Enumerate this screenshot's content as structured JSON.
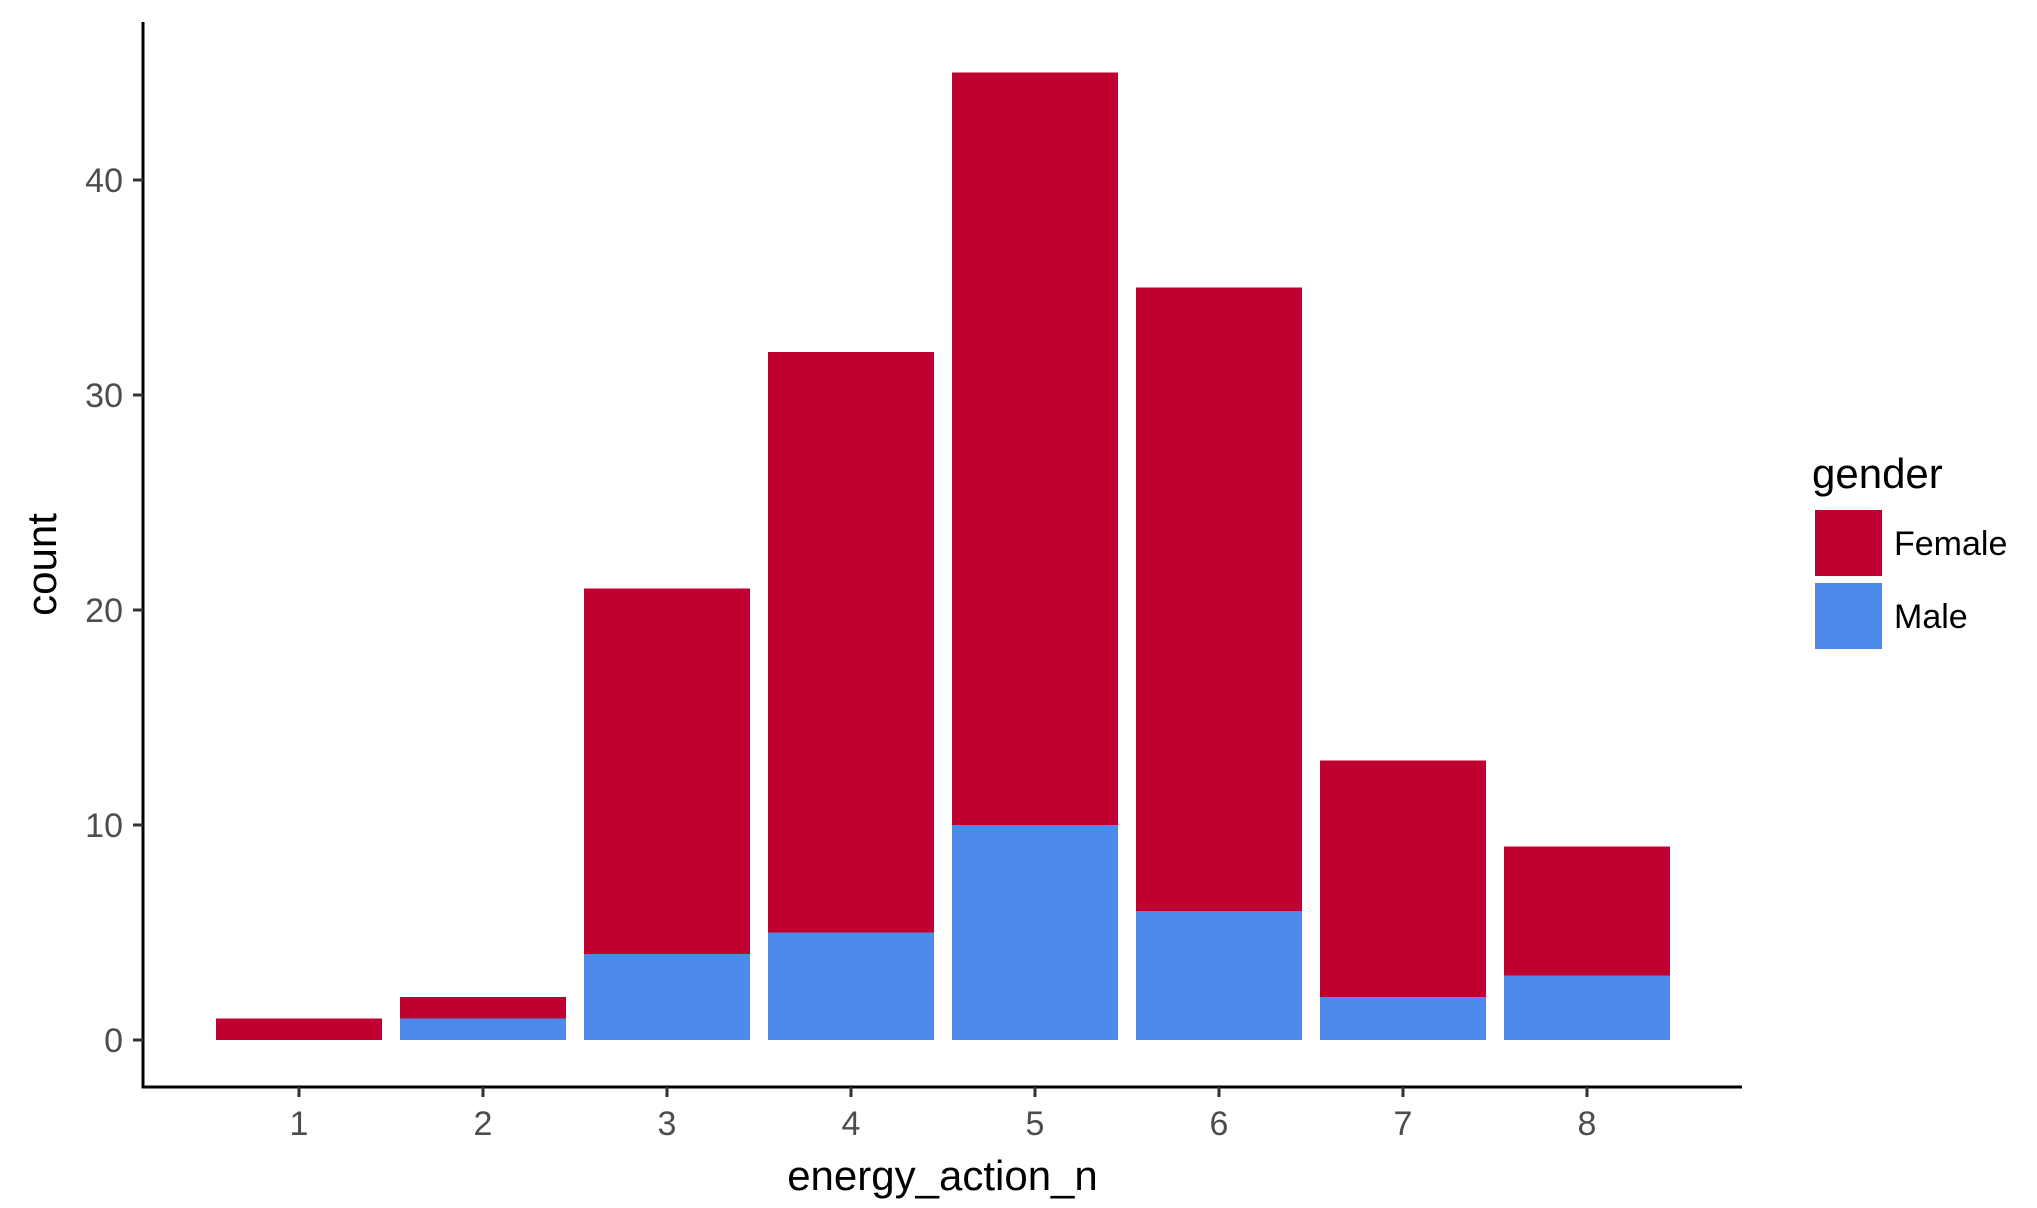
{
  "chart_data": {
    "type": "bar",
    "stacked": true,
    "categories": [
      "1",
      "2",
      "3",
      "4",
      "5",
      "6",
      "7",
      "8"
    ],
    "series": [
      {
        "name": "Female",
        "color": "#C10032",
        "values": [
          1,
          1,
          17,
          27,
          35,
          29,
          11,
          6
        ]
      },
      {
        "name": "Male",
        "color": "#4D8AEB",
        "values": [
          0,
          1,
          4,
          5,
          10,
          6,
          2,
          3
        ]
      }
    ],
    "xlabel": "energy_action_n",
    "ylabel": "count",
    "ylim": [
      0,
      45
    ],
    "yticks": [
      0,
      10,
      20,
      30,
      40
    ],
    "grid": false,
    "legend": {
      "title": "gender",
      "position": "right"
    }
  }
}
